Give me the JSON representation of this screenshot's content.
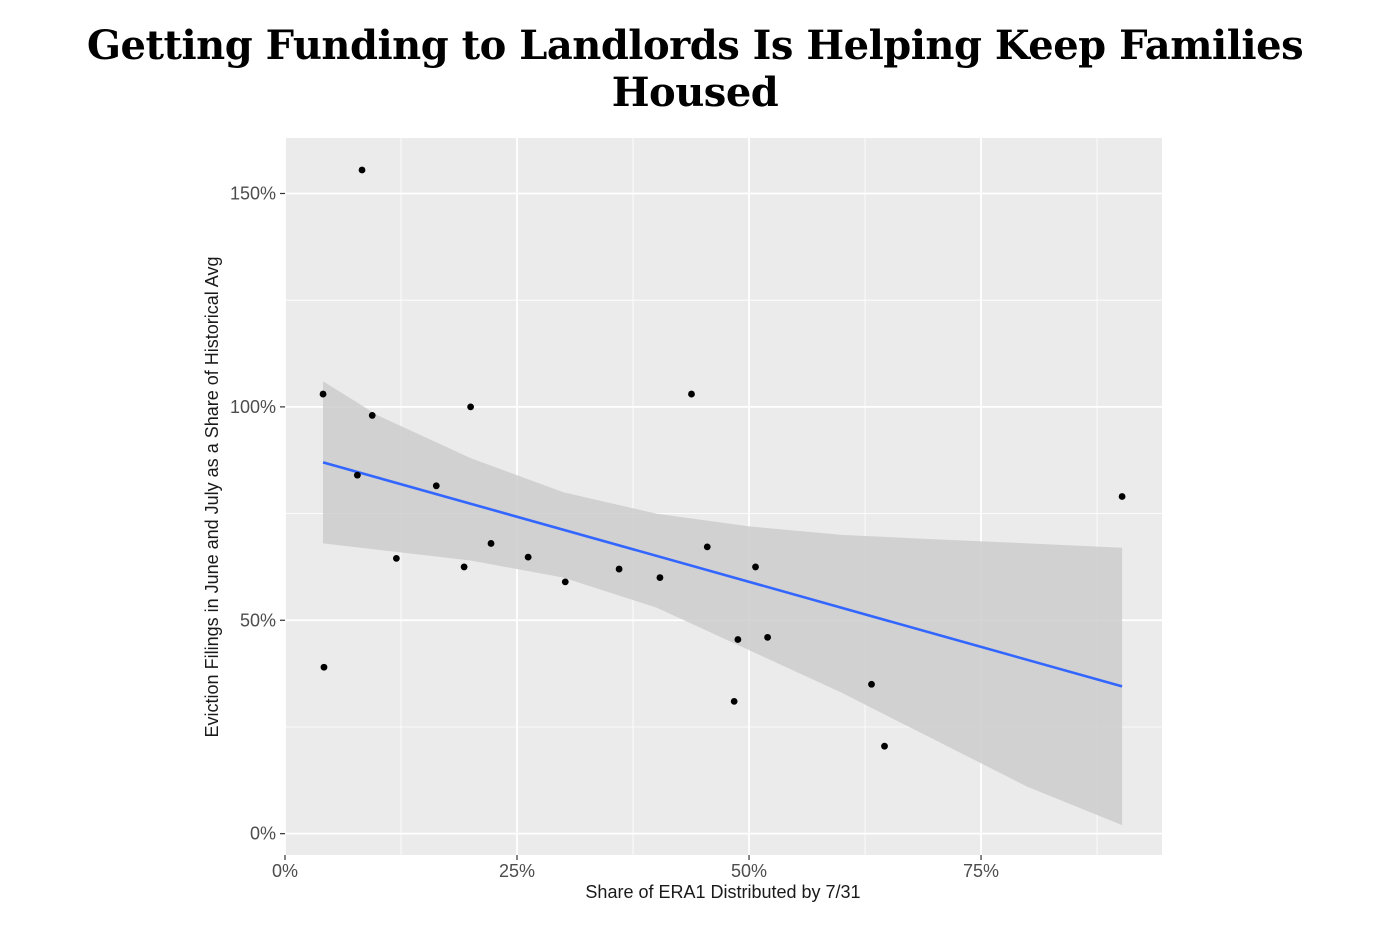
{
  "title": "Getting Funding to Landlords Is Helping Keep Families Housed",
  "chart_data": {
    "type": "scatter",
    "xlabel": "Share of ERA1 Distributed by 7/31",
    "ylabel": "Eviction Filings in June and July as a Share of Historical Avg",
    "xlim": [
      0,
      0.945
    ],
    "ylim": [
      -0.05,
      1.63
    ],
    "x_ticks": [
      0,
      0.25,
      0.5,
      0.75
    ],
    "x_tick_labels": [
      "0%",
      "25%",
      "50%",
      "75%"
    ],
    "y_ticks": [
      0,
      0.5,
      1.0,
      1.5
    ],
    "y_tick_labels": [
      "0%",
      "50%",
      "100%",
      "150%"
    ],
    "grid": true,
    "points": [
      {
        "x": 0.041,
        "y": 1.03
      },
      {
        "x": 0.042,
        "y": 0.39
      },
      {
        "x": 0.078,
        "y": 0.84
      },
      {
        "x": 0.083,
        "y": 1.555
      },
      {
        "x": 0.094,
        "y": 0.98
      },
      {
        "x": 0.12,
        "y": 0.645
      },
      {
        "x": 0.163,
        "y": 0.815
      },
      {
        "x": 0.193,
        "y": 0.625
      },
      {
        "x": 0.2,
        "y": 1.0
      },
      {
        "x": 0.222,
        "y": 0.68
      },
      {
        "x": 0.262,
        "y": 0.648
      },
      {
        "x": 0.302,
        "y": 0.59
      },
      {
        "x": 0.36,
        "y": 0.62
      },
      {
        "x": 0.404,
        "y": 0.6
      },
      {
        "x": 0.438,
        "y": 1.03
      },
      {
        "x": 0.455,
        "y": 0.672
      },
      {
        "x": 0.484,
        "y": 0.31
      },
      {
        "x": 0.488,
        "y": 0.455
      },
      {
        "x": 0.507,
        "y": 0.625
      },
      {
        "x": 0.52,
        "y": 0.46
      },
      {
        "x": 0.632,
        "y": 0.35
      },
      {
        "x": 0.646,
        "y": 0.205
      },
      {
        "x": 0.902,
        "y": 0.79
      }
    ],
    "fit_line": {
      "x": [
        0.041,
        0.902
      ],
      "y": [
        0.87,
        0.345
      ],
      "color": "#3366FF"
    },
    "confidence_band": {
      "x": [
        0.041,
        0.1,
        0.2,
        0.3,
        0.4,
        0.45,
        0.5,
        0.6,
        0.7,
        0.8,
        0.902
      ],
      "upper": [
        1.06,
        0.98,
        0.88,
        0.8,
        0.75,
        0.735,
        0.72,
        0.7,
        0.69,
        0.68,
        0.67
      ],
      "lower": [
        0.68,
        0.665,
        0.64,
        0.6,
        0.53,
        0.48,
        0.43,
        0.33,
        0.22,
        0.11,
        0.02
      ]
    }
  },
  "colors": {
    "panel": "#EBEBEB",
    "grid": "#FFFFFF",
    "band": "#CCCCCC",
    "point": "#000000"
  }
}
